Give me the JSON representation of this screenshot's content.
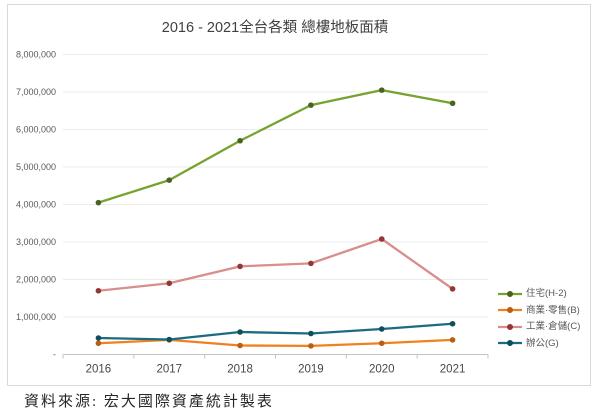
{
  "chart_data": {
    "type": "line",
    "title": "2016 - 2021全台各類 總樓地板面積",
    "source_note": "資料來源: 宏大國際資產統計製表",
    "categories": [
      "2016",
      "2017",
      "2018",
      "2019",
      "2020",
      "2021"
    ],
    "series": [
      {
        "name": "住宅(H-2)",
        "color": "#76A22E",
        "marker_color": "#4B611E",
        "values": [
          4050000,
          4650000,
          5700000,
          6650000,
          7050000,
          6700000
        ]
      },
      {
        "name": "商業·零售(B)",
        "color": "#F0811F",
        "marker_color": "#BC5E11",
        "values": [
          300000,
          390000,
          240000,
          230000,
          300000,
          390000
        ]
      },
      {
        "name": "工業·倉儲(C)",
        "color": "#D78E8C",
        "marker_color": "#943634",
        "values": [
          1700000,
          1900000,
          2350000,
          2430000,
          3080000,
          1750000
        ]
      },
      {
        "name": "辦公(G)",
        "color": "#1B6C80",
        "marker_color": "#0E4F5E",
        "values": [
          440000,
          400000,
          600000,
          560000,
          680000,
          820000
        ]
      }
    ],
    "ylim": [
      0,
      8000000
    ],
    "y_tick_step": 1000000,
    "y_ticks_top_to_bottom": [
      "8,000,000",
      "7,000,000",
      "6,000,000",
      "5,000,000",
      "4,000,000",
      "3,000,000",
      "2,000,000",
      "1,000,000",
      "-"
    ],
    "xlabel": "",
    "ylabel": "",
    "grid": true,
    "legend_position": "right"
  }
}
